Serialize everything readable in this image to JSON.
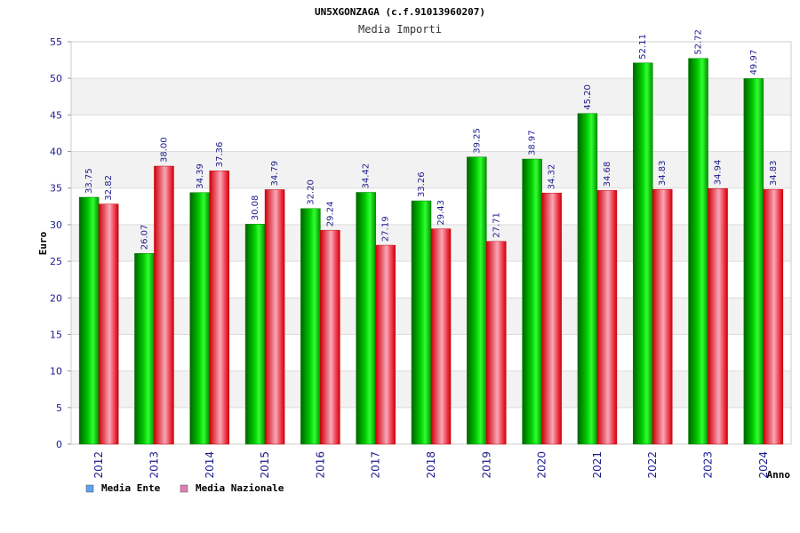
{
  "chart_data": {
    "type": "bar",
    "title": "UN5XGONZAGA (c.f.91013960207)",
    "subtitle": "Media Importi",
    "xlabel": "Anno",
    "ylabel": "Euro",
    "ylim": [
      0,
      55
    ],
    "yticks": [
      0,
      5,
      10,
      15,
      20,
      25,
      30,
      35,
      40,
      45,
      50,
      55
    ],
    "grid": true,
    "legend_position": "bottom-left",
    "categories": [
      "2012",
      "2013",
      "2014",
      "2015",
      "2016",
      "2017",
      "2018",
      "2019",
      "2020",
      "2021",
      "2022",
      "2023",
      "2024"
    ],
    "series": [
      {
        "name": "Media Ente",
        "color": "#00b000",
        "legend_color": "#5fa0f0",
        "values": [
          33.75,
          26.07,
          34.39,
          30.08,
          32.2,
          34.42,
          33.26,
          39.25,
          38.97,
          45.2,
          52.11,
          52.72,
          49.97
        ],
        "labels": [
          "33.75",
          "26.07",
          "34.39",
          "30.08",
          "32.20",
          "34.42",
          "33.26",
          "39.25",
          "38.97",
          "45.20",
          "52.11",
          "52.72",
          "49.97"
        ]
      },
      {
        "name": "Media Nazionale",
        "color": "#e8000a",
        "legend_color": "#e07fb0",
        "values": [
          32.82,
          38.0,
          37.36,
          34.79,
          29.24,
          27.19,
          29.43,
          27.71,
          34.32,
          34.68,
          34.83,
          34.94,
          34.83
        ],
        "labels": [
          "32.82",
          "38.00",
          "37.36",
          "34.79",
          "29.24",
          "27.19",
          "29.43",
          "27.71",
          "34.32",
          "34.68",
          "34.83",
          "34.94",
          "34.83"
        ]
      }
    ]
  }
}
